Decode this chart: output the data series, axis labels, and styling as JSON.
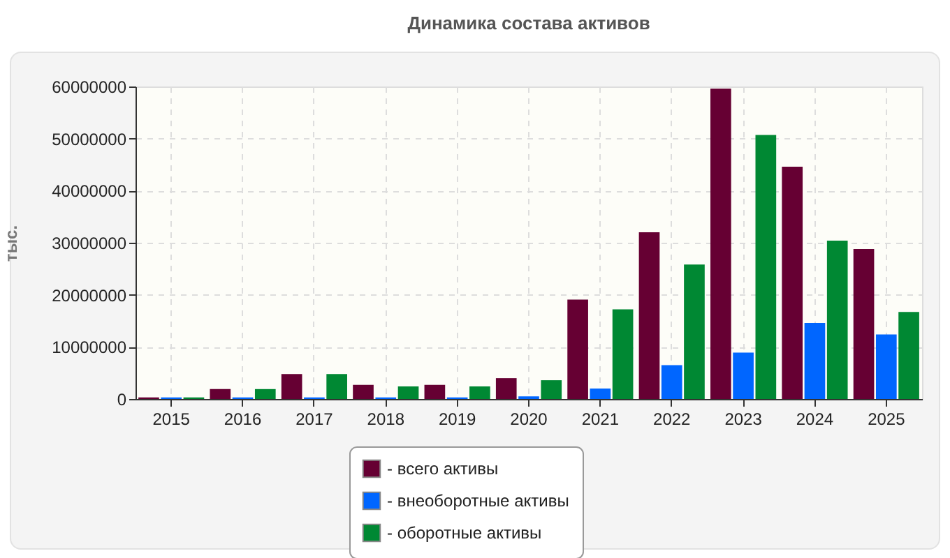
{
  "chart_data": {
    "type": "bar",
    "title": "Динамика состава активов",
    "ylabel": "тыс.",
    "categories": [
      "2015",
      "2016",
      "2017",
      "2018",
      "2019",
      "2020",
      "2021",
      "2022",
      "2023",
      "2024",
      "2025"
    ],
    "series": [
      {
        "name": "- всего активы",
        "color": "#660033",
        "values": [
          300000,
          1900000,
          4800000,
          2700000,
          2700000,
          4000000,
          19100000,
          32000000,
          59600000,
          44600000,
          28800000
        ]
      },
      {
        "name": "- внеоборотные активы",
        "color": "#0066ff",
        "values": [
          300000,
          300000,
          300000,
          300000,
          300000,
          500000,
          2000000,
          6500000,
          8900000,
          14600000,
          12400000
        ]
      },
      {
        "name": "- оборотные активы",
        "color": "#008833",
        "values": [
          300000,
          1900000,
          4800000,
          2400000,
          2400000,
          3600000,
          17200000,
          25800000,
          50700000,
          30400000,
          16700000
        ]
      }
    ],
    "ylim": [
      0,
      60000000
    ],
    "yticks": [
      0,
      10000000,
      20000000,
      30000000,
      40000000,
      50000000,
      60000000
    ],
    "grid": true,
    "legend": "bottom"
  }
}
